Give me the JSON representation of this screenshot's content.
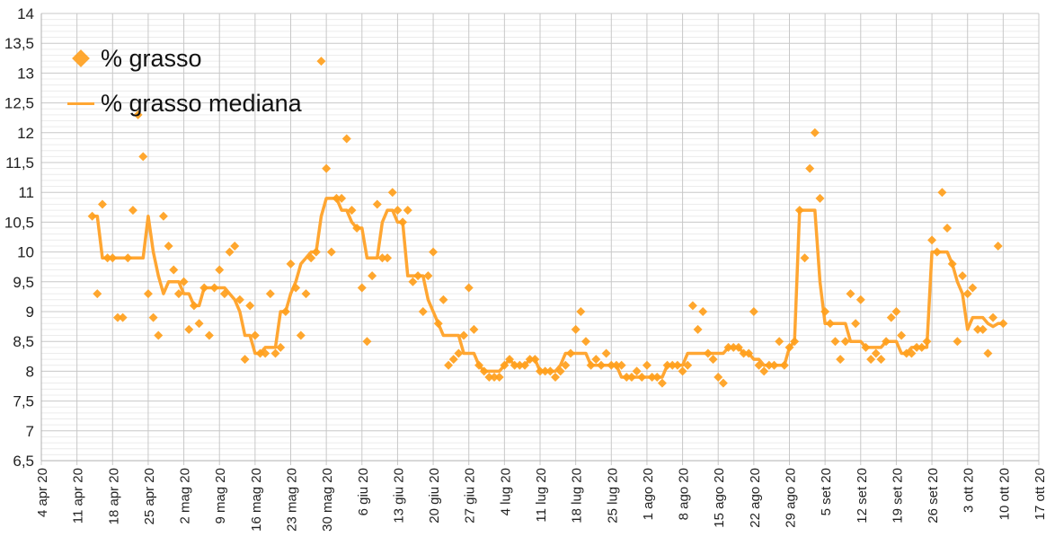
{
  "chart_data": {
    "type": "line",
    "title": "",
    "xlabel": "",
    "ylabel": "",
    "ylim": [
      6.5,
      14
    ],
    "y_ticks": [
      "6,5",
      "7",
      "7,5",
      "8",
      "8,5",
      "9",
      "9,5",
      "10",
      "10,5",
      "11",
      "11,5",
      "12",
      "12,5",
      "13",
      "13,5",
      "14"
    ],
    "x_ticks": [
      "4 apr 20",
      "11 apr 20",
      "18 apr 20",
      "25 apr 20",
      "2 mag 20",
      "9 mag 20",
      "16 mag 20",
      "23 mag 20",
      "30 mag 20",
      "6 giu 20",
      "13 giu 20",
      "20 giu 20",
      "27 giu 20",
      "4 lug 20",
      "11 lug 20",
      "18 lug 20",
      "25 lug 20",
      "1 ago 20",
      "8 ago 20",
      "15 ago 20",
      "22 ago 20",
      "29 ago 20",
      "5 set 20",
      "12 set 20",
      "19 set 20",
      "26 set 20",
      "3 ott 20",
      "10 ott 20",
      "17 ott 20"
    ],
    "x_range_days_from_4_apr_20": [
      0,
      196
    ],
    "first_point_day_from_4_apr_20": 10,
    "step_days": 1,
    "grid": true,
    "legend_position": "top-left",
    "colors": {
      "series": "#ff9f1c",
      "line": "#ffa632",
      "grid_major": "#c8c8c8",
      "grid_minor": "#ececec"
    },
    "series": [
      {
        "name": "% grasso",
        "kind": "scatter",
        "marker": "diamond",
        "values": [
          10.6,
          9.3,
          10.8,
          9.9,
          9.9,
          8.9,
          8.9,
          9.9,
          10.7,
          12.3,
          11.6,
          9.3,
          8.9,
          8.6,
          10.6,
          10.1,
          9.7,
          9.3,
          9.5,
          8.7,
          9.1,
          8.8,
          9.4,
          8.6,
          9.4,
          9.7,
          9.3,
          10.0,
          10.1,
          9.2,
          8.2,
          9.1,
          8.6,
          8.3,
          8.3,
          9.3,
          8.3,
          8.4,
          9.0,
          9.8,
          9.4,
          8.6,
          9.3,
          9.9,
          10.0,
          13.2,
          11.4,
          10.0,
          10.9,
          10.9,
          11.9,
          10.7,
          10.4,
          9.4,
          8.5,
          9.6,
          10.8,
          9.9,
          9.9,
          11.0,
          10.7,
          10.5,
          10.7,
          9.5,
          9.6,
          9.0,
          9.6,
          10.0,
          8.8,
          9.2,
          8.1,
          8.2,
          8.3,
          8.6,
          9.4,
          8.7,
          8.1,
          8.0,
          7.9,
          7.9,
          7.9,
          8.1,
          8.2,
          8.1,
          8.1,
          8.1,
          8.2,
          8.2,
          8.0,
          8.0,
          8.0,
          7.9,
          8.0,
          8.1,
          8.3,
          8.7,
          9.0,
          8.5,
          8.1,
          8.2,
          8.1,
          8.3,
          8.1,
          8.1,
          8.1,
          7.9,
          7.9,
          8.0,
          7.9,
          8.1,
          7.9,
          7.9,
          7.8,
          8.1,
          8.1,
          8.1,
          8.0,
          8.1,
          9.1,
          8.7,
          9.0,
          8.3,
          8.2,
          7.9,
          7.8,
          8.4,
          8.4,
          8.4,
          8.3,
          8.3,
          9.0,
          8.1,
          8.0,
          8.1,
          8.1,
          8.5,
          8.1,
          8.4,
          8.5,
          10.7,
          9.9,
          11.4,
          12.0,
          10.9,
          9.0,
          8.8,
          8.5,
          8.2,
          8.5,
          9.3,
          8.8,
          9.2,
          8.4,
          8.2,
          8.3,
          8.2,
          8.5,
          8.9,
          9.0,
          8.6,
          8.3,
          8.3,
          8.4,
          8.4,
          8.5,
          10.2,
          10.0,
          11.0,
          10.4,
          9.8,
          8.5,
          9.6,
          9.3,
          9.4,
          8.7,
          8.7,
          8.3,
          8.9,
          10.1,
          8.8
        ]
      },
      {
        "name": "% grasso mediana",
        "kind": "line",
        "values": [
          10.6,
          10.6,
          9.9,
          9.9,
          9.9,
          9.9,
          9.9,
          9.9,
          9.9,
          9.9,
          9.9,
          10.6,
          10.0,
          9.6,
          9.3,
          9.5,
          9.5,
          9.5,
          9.3,
          9.3,
          9.1,
          9.1,
          9.4,
          9.4,
          9.4,
          9.4,
          9.4,
          9.3,
          9.2,
          9.0,
          8.6,
          8.6,
          8.3,
          8.3,
          8.4,
          8.4,
          8.4,
          9.0,
          9.0,
          9.3,
          9.5,
          9.8,
          9.9,
          10.0,
          10.0,
          10.6,
          10.9,
          10.9,
          10.9,
          10.7,
          10.7,
          10.5,
          10.4,
          10.4,
          9.9,
          9.9,
          9.9,
          10.5,
          10.7,
          10.7,
          10.5,
          10.5,
          9.6,
          9.6,
          9.6,
          9.6,
          9.2,
          9.0,
          8.8,
          8.6,
          8.6,
          8.6,
          8.6,
          8.3,
          8.3,
          8.3,
          8.1,
          8.0,
          8.0,
          8.0,
          8.0,
          8.1,
          8.2,
          8.1,
          8.1,
          8.1,
          8.2,
          8.2,
          8.0,
          8.0,
          8.0,
          8.0,
          8.1,
          8.3,
          8.3,
          8.3,
          8.3,
          8.3,
          8.1,
          8.1,
          8.1,
          8.1,
          8.1,
          8.1,
          7.9,
          7.9,
          7.9,
          7.9,
          7.9,
          7.9,
          7.9,
          7.9,
          7.9,
          8.1,
          8.1,
          8.1,
          8.1,
          8.3,
          8.3,
          8.3,
          8.3,
          8.3,
          8.3,
          8.3,
          8.3,
          8.4,
          8.4,
          8.4,
          8.3,
          8.3,
          8.2,
          8.2,
          8.1,
          8.1,
          8.1,
          8.1,
          8.1,
          8.4,
          8.5,
          10.7,
          10.7,
          10.7,
          10.7,
          9.5,
          8.8,
          8.8,
          8.8,
          8.8,
          8.8,
          8.5,
          8.5,
          8.5,
          8.4,
          8.4,
          8.4,
          8.4,
          8.5,
          8.5,
          8.5,
          8.3,
          8.3,
          8.4,
          8.4,
          8.4,
          8.4,
          10.0,
          10.0,
          10.0,
          10.0,
          9.8,
          9.5,
          9.3,
          8.7,
          8.9,
          8.9,
          8.9,
          8.8,
          8.75,
          8.8,
          8.8
        ]
      }
    ]
  }
}
